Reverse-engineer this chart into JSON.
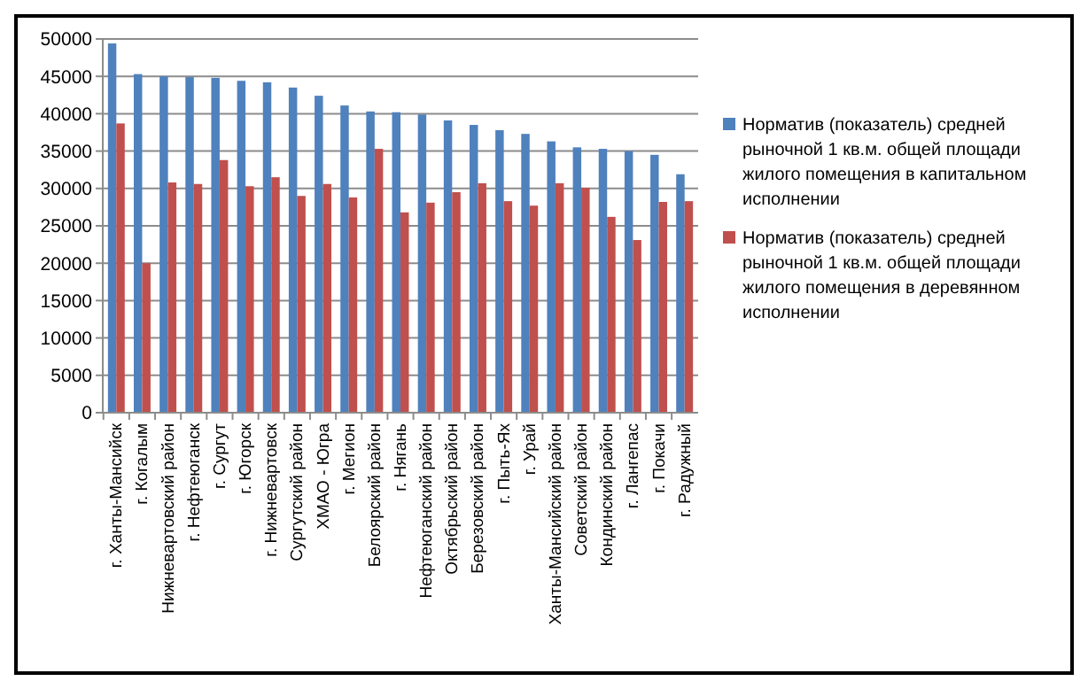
{
  "chart_data": {
    "type": "bar",
    "categories": [
      "г. Ханты-Мансийск",
      "г. Когалым",
      "Нижневартовский район",
      "г. Нефтеюганск",
      "г. Сургут",
      "г. Югорск",
      "г. Нижневартовск",
      "Сургутский район",
      "ХМАО - Югра",
      "г. Мегион",
      "Белоярский район",
      "г. Нягань",
      "Нефтеюганский район",
      "Октябрьский район",
      "Березовский район",
      "г. Пыть-Ях",
      "г. Урай",
      "Ханты-Мансийский район",
      "Советский район",
      "Кондинский район",
      "г. Лангепас",
      "г. Покачи",
      "г. Радужный"
    ],
    "series": [
      {
        "name": "Норматив (показатель) средней рыночной 1 кв.м.  общей площади жилого помещения в капитальном исполнении",
        "color": "#4f81bd",
        "values": [
          49400,
          45300,
          45000,
          44900,
          44800,
          44400,
          44200,
          43500,
          42400,
          41100,
          40300,
          40200,
          39900,
          39100,
          38500,
          37800,
          37300,
          36300,
          35500,
          35300,
          35000,
          34500,
          31900
        ]
      },
      {
        "name": "Норматив (показатель) средней рыночной 1 кв.м.  общей площади жилого помещения в деревянном исполнении",
        "color": "#c0504d",
        "values": [
          38700,
          20000,
          30800,
          30600,
          33800,
          30300,
          31500,
          29000,
          30600,
          28800,
          35300,
          26800,
          28100,
          29500,
          30700,
          28300,
          27700,
          30700,
          30100,
          26200,
          23100,
          28200,
          28300
        ]
      }
    ],
    "ylim": [
      0,
      50000
    ],
    "yticks": [
      0,
      5000,
      10000,
      15000,
      20000,
      25000,
      30000,
      35000,
      40000,
      45000,
      50000
    ],
    "grid": "y",
    "legend": "right"
  }
}
